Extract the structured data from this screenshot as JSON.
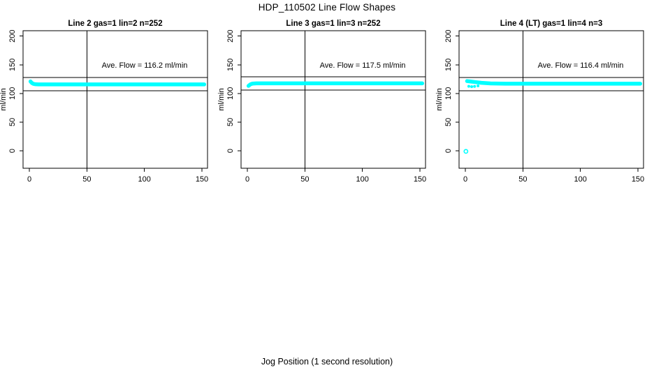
{
  "figure": {
    "title": "HDP_110502  Line Flow Shapes",
    "xlabel": "Jog Position (1 second resolution)"
  },
  "colors": {
    "data_point": "#00ffff",
    "axis": "#000000",
    "background": "#ffffff"
  },
  "chart_data": [
    {
      "type": "scatter",
      "title": "Line 2 gas=1 lin=2 n=252",
      "ylabel": "ml/min",
      "annotation": "Ave. Flow =  116.2  ml/min",
      "ave_flow_ml_min": 116.2,
      "n": 252,
      "xticks": [
        0,
        50,
        100,
        150
      ],
      "yticks": [
        0,
        50,
        100,
        150,
        200
      ],
      "xlim": [
        -6,
        158
      ],
      "ylim": [
        -30,
        210
      ],
      "grid": "off",
      "legend": "none",
      "vline_x": 50,
      "ref_lines_y": [
        127.8,
        104.6
      ],
      "band_path": [
        [
          1,
          121
        ],
        [
          1.6,
          119.5
        ],
        [
          2.4,
          118
        ],
        [
          3.5,
          116.8
        ],
        [
          5,
          116.1
        ],
        [
          8,
          115.8
        ],
        [
          152,
          115.8
        ]
      ],
      "extra_points": [],
      "open_circle_outliers": []
    },
    {
      "type": "scatter",
      "title": "Line 3 gas=1 lin=3 n=252",
      "ylabel": "ml/min",
      "annotation": "Ave. Flow =  117.5  ml/min",
      "ave_flow_ml_min": 117.5,
      "n": 252,
      "xticks": [
        0,
        50,
        100,
        150
      ],
      "yticks": [
        0,
        50,
        100,
        150,
        200
      ],
      "xlim": [
        -6,
        158
      ],
      "ylim": [
        -30,
        210
      ],
      "grid": "off",
      "legend": "none",
      "vline_x": 50,
      "ref_lines_y": [
        129.3,
        105.8
      ],
      "band_path": [
        [
          1,
          113.2
        ],
        [
          1.8,
          114.5
        ],
        [
          2.8,
          116
        ],
        [
          4.5,
          117.2
        ],
        [
          8,
          117.6
        ],
        [
          152,
          117.6
        ]
      ],
      "extra_points": [],
      "open_circle_outliers": []
    },
    {
      "type": "scatter",
      "title": "Line 4 (LT) gas=1 lin=4 n=3",
      "ylabel": "ml/min",
      "annotation": "Ave. Flow =  116.4  ml/min",
      "ave_flow_ml_min": 116.4,
      "n": 3,
      "xticks": [
        0,
        50,
        100,
        150
      ],
      "yticks": [
        0,
        50,
        100,
        150,
        200
      ],
      "xlim": [
        -6,
        158
      ],
      "ylim": [
        -30,
        210
      ],
      "grid": "off",
      "legend": "none",
      "vline_x": 50,
      "ref_lines_y": [
        128.0,
        104.8
      ],
      "band_path": [
        [
          1.5,
          121.5
        ],
        [
          4,
          121
        ],
        [
          8,
          120
        ],
        [
          14,
          118.5
        ],
        [
          22,
          117.5
        ],
        [
          35,
          117
        ],
        [
          152,
          117
        ]
      ],
      "extra_points": [
        [
          3,
          112.5
        ],
        [
          5.5,
          111.8
        ],
        [
          8,
          112.3
        ],
        [
          11,
          113.2
        ]
      ],
      "open_circle_outliers": [
        [
          0.5,
          -1
        ]
      ]
    }
  ]
}
